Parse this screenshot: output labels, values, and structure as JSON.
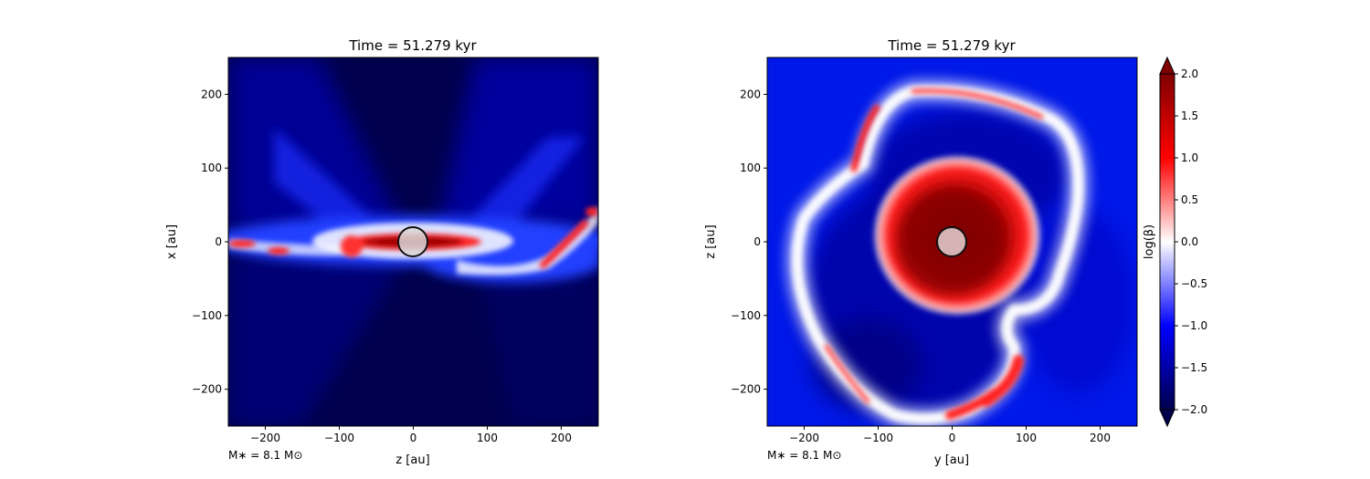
{
  "chart_data": [
    {
      "type": "heatmap",
      "title": "Time = 51.279 kyr",
      "xlabel": "z [au]",
      "ylabel": "x [au]",
      "xlim": [
        -250,
        250
      ],
      "ylim": [
        -250,
        250
      ],
      "xticks": [
        -200,
        -100,
        0,
        100,
        200
      ],
      "yticks": [
        -200,
        -100,
        0,
        100,
        200
      ],
      "annotation": "M$_*$ = 8.1 M$_\\odot$",
      "annotation_text": "M∗ = 8.1 M⊙",
      "sink_radius_au": 20,
      "sink_center": [
        0,
        0
      ],
      "features": [
        {
          "kind": "red-disk-midplane",
          "x_range": [
            -90,
            90
          ],
          "y_center": 0,
          "level": 2.0
        },
        {
          "kind": "red-filament-left",
          "x_range": [
            -250,
            -150
          ],
          "y_center": -10,
          "level": 0.8
        },
        {
          "kind": "red-filament-right",
          "x_range": [
            130,
            250
          ],
          "y_center": 20,
          "level": 0.8
        },
        {
          "kind": "blue-outflow-cones",
          "level": -1.0
        },
        {
          "kind": "background",
          "level": -2.0
        }
      ]
    },
    {
      "type": "heatmap",
      "title": "Time = 51.279 kyr",
      "xlabel": "y [au]",
      "ylabel": "z [au]",
      "xlim": [
        -250,
        250
      ],
      "ylim": [
        -250,
        250
      ],
      "xticks": [
        -200,
        -100,
        0,
        100,
        200
      ],
      "yticks": [
        -200,
        -100,
        0,
        100,
        200
      ],
      "annotation": "M$_*$ = 8.1 M$_\\odot$",
      "annotation_text": "M∗ = 8.1 M⊙",
      "sink_radius_au": 20,
      "sink_center": [
        0,
        0
      ],
      "features": [
        {
          "kind": "red-central-disk",
          "center": [
            0,
            0
          ],
          "radius_au": 95,
          "level": 2.0
        },
        {
          "kind": "red-spiral-ring",
          "level": 0.8
        },
        {
          "kind": "background",
          "level": -1.2
        }
      ]
    }
  ],
  "colorbar": {
    "label": "log(β)",
    "min": -2.0,
    "max": 2.0,
    "ticks": [
      2.0,
      1.5,
      1.0,
      0.5,
      0.0,
      -0.5,
      -1.0,
      -1.5,
      -2.0
    ],
    "tick_labels": [
      "2.0",
      "1.5",
      "1.0",
      "0.5",
      "0.0",
      "−0.5",
      "−1.0",
      "−1.5",
      "−2.0"
    ],
    "colormap": "seismic",
    "extend": "both",
    "colors": {
      "low": "#00004d",
      "mid_low": "#0000ff",
      "mid": "#ffffff",
      "mid_high": "#ff0000",
      "high": "#800000"
    }
  }
}
